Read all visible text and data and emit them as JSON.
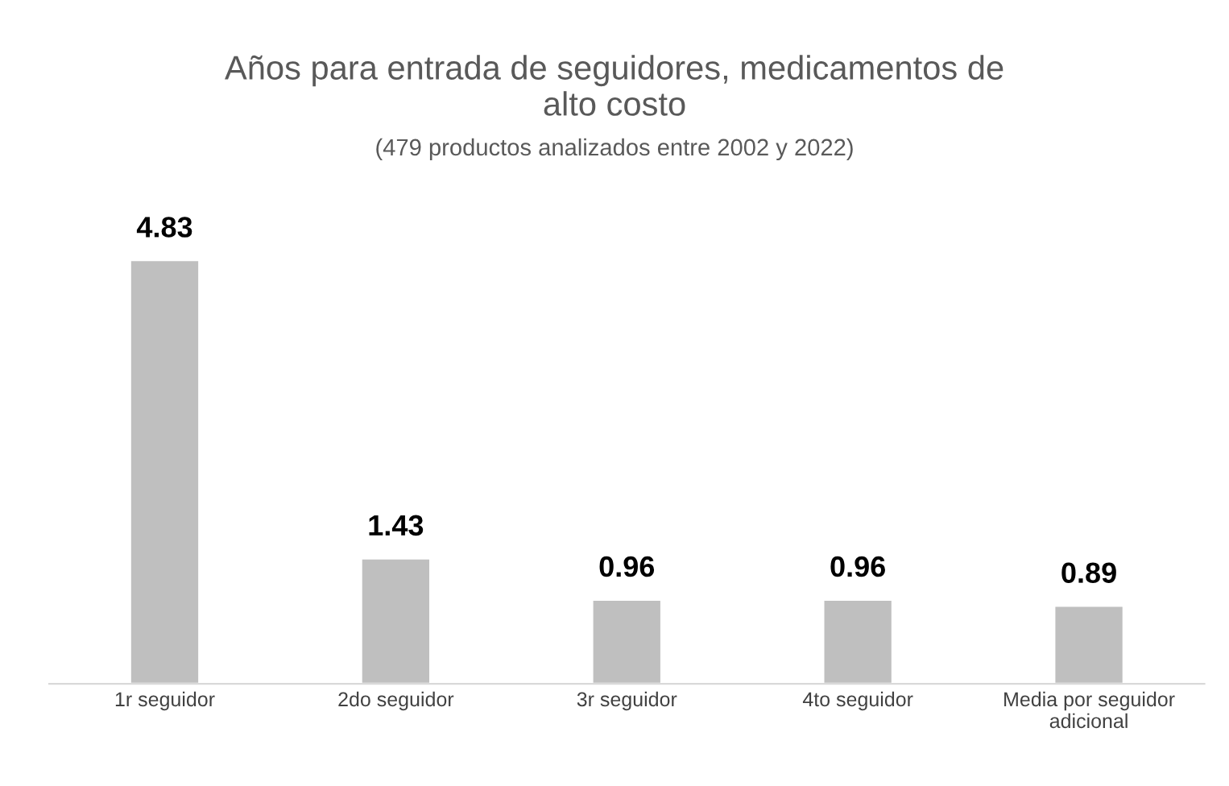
{
  "chart_data": {
    "type": "bar",
    "title": "Años para entrada de seguidores, medicamentos de\nalto costo",
    "subtitle": "(479 productos analizados entre 2002 y 2022)",
    "categories": [
      "1r seguidor",
      "2do seguidor",
      "3r seguidor",
      "4to seguidor",
      "Media por seguidor\nadicional"
    ],
    "values": [
      4.83,
      1.43,
      0.96,
      0.96,
      0.89
    ],
    "color": "#bfbfbf",
    "data_labels": true,
    "grid": false,
    "legend": false
  }
}
